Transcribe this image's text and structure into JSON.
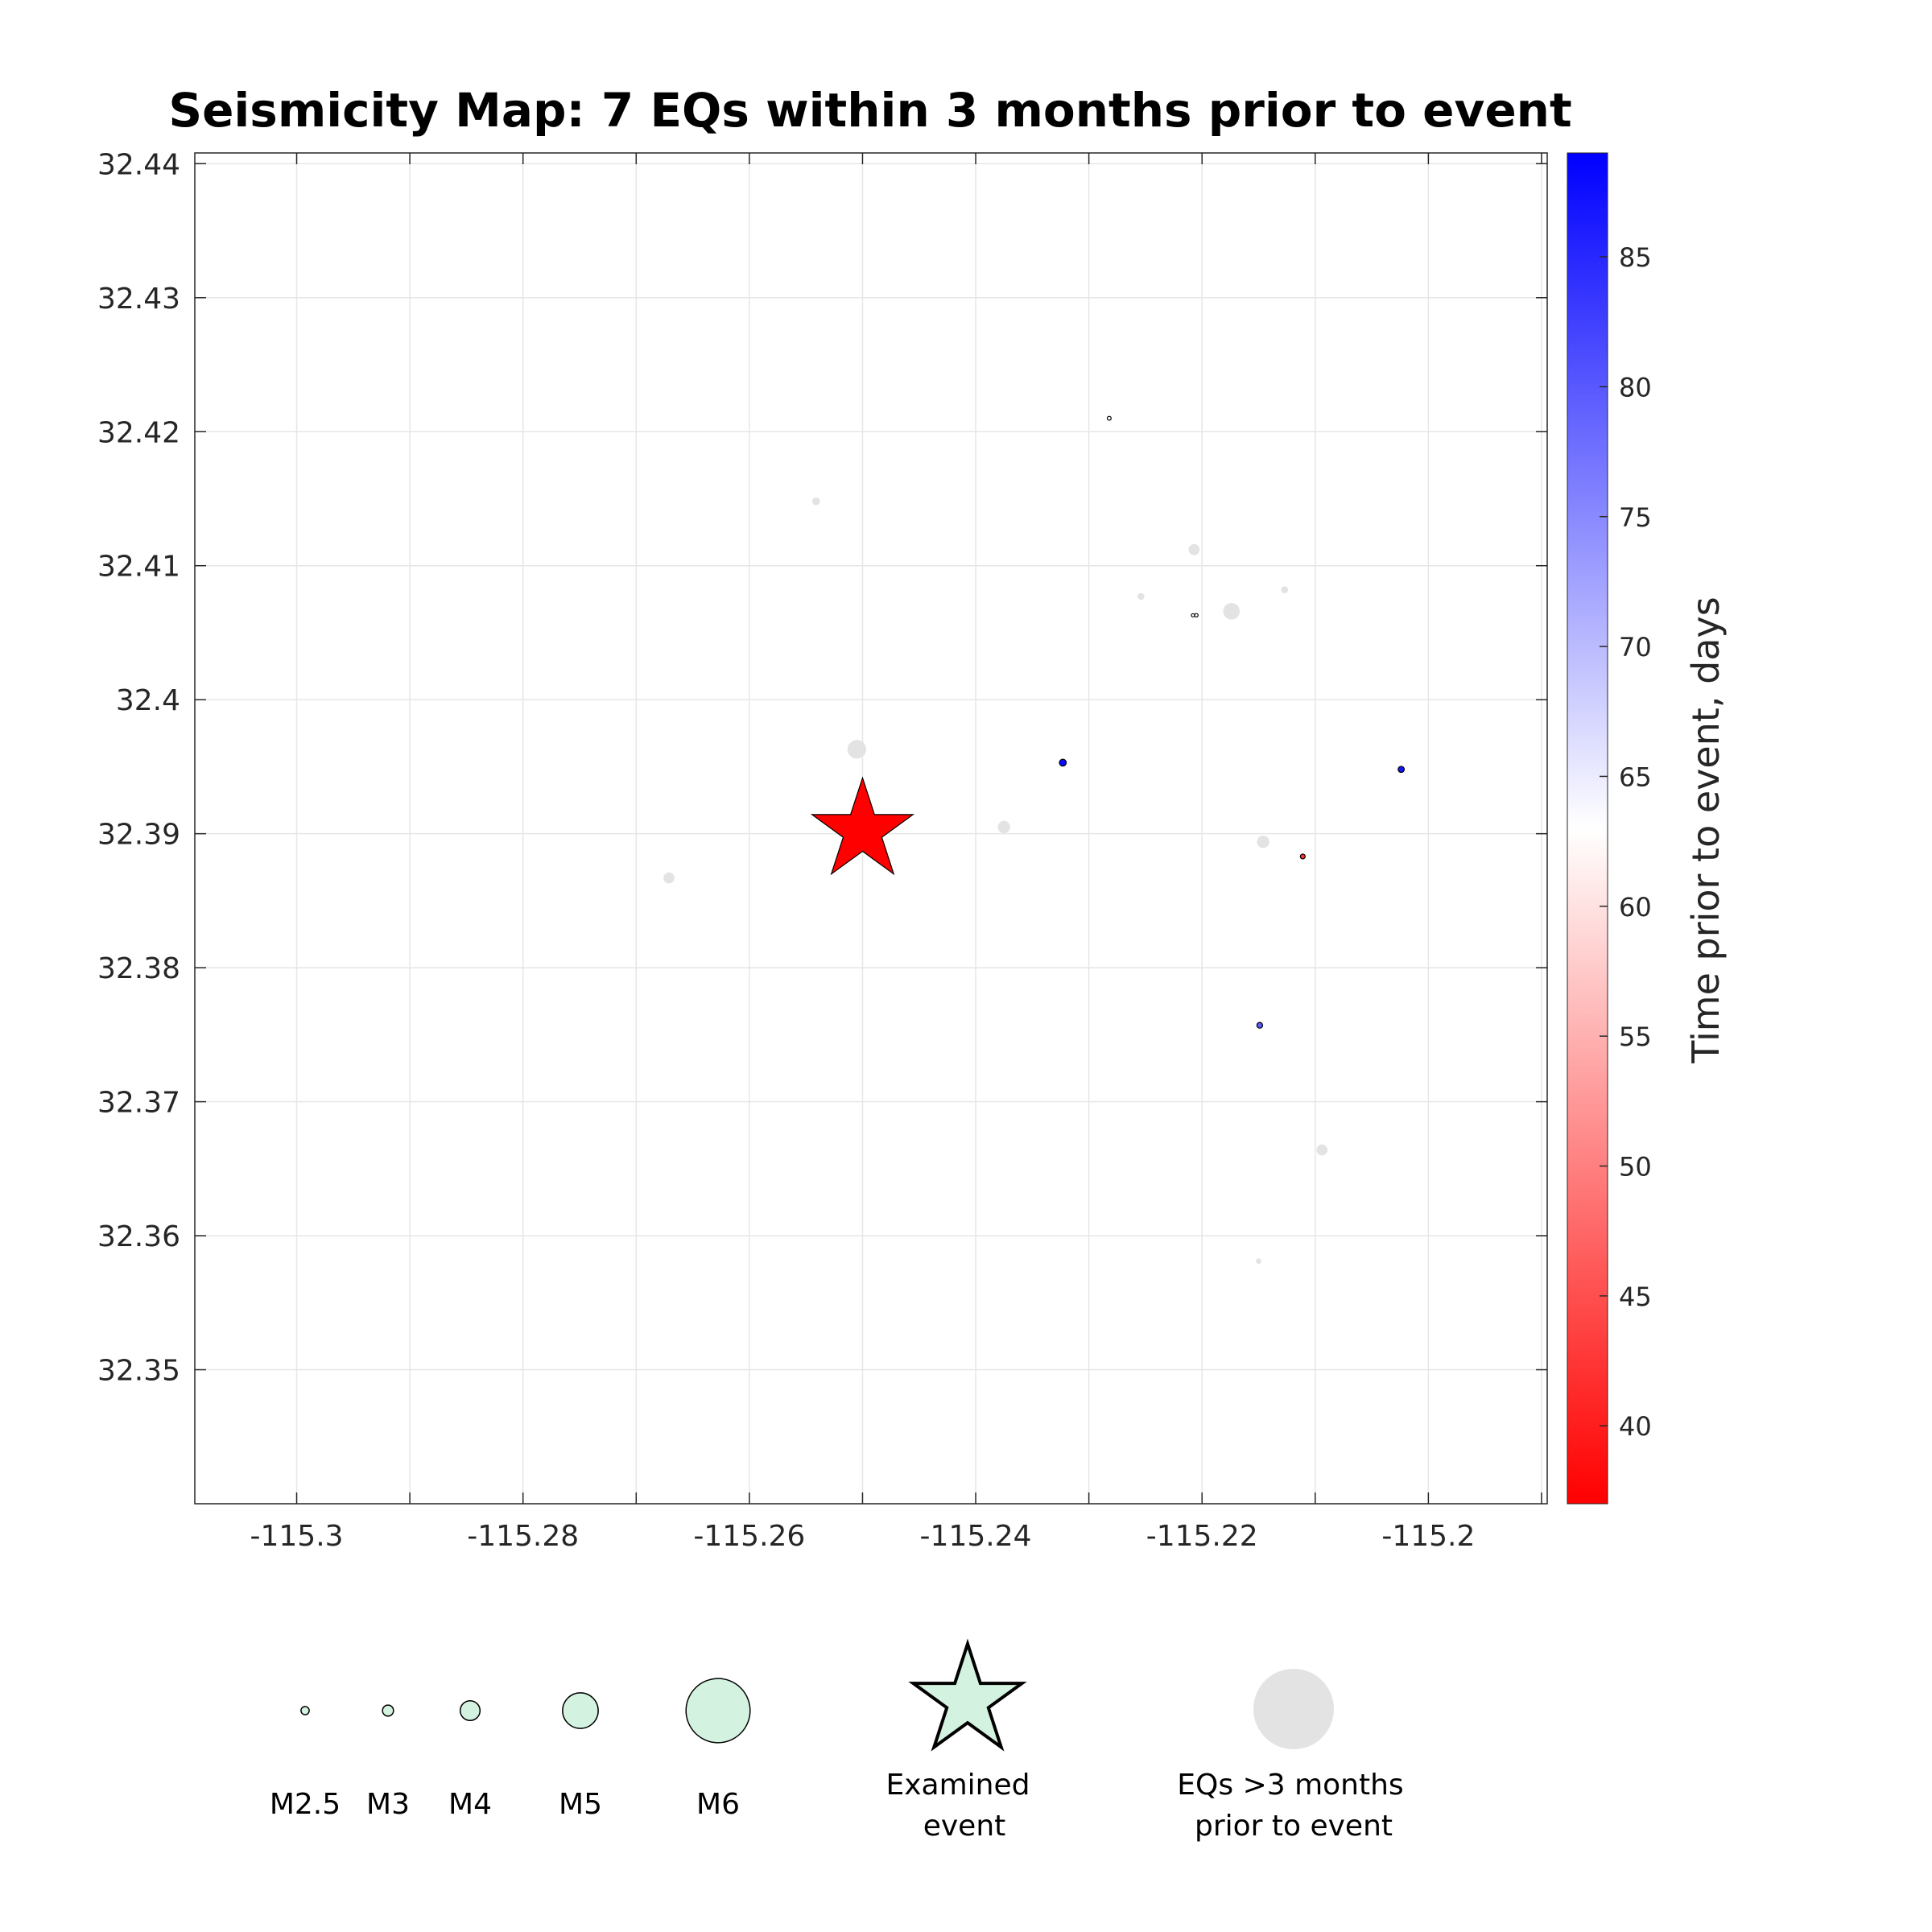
{
  "chart_data": {
    "type": "scatter",
    "title": "Seismicity Map: 7 EQs within 3 months prior to event",
    "xlim": [
      -115.309,
      -115.1895
    ],
    "ylim": [
      32.34,
      32.4408
    ],
    "x_ticks": [
      -115.3,
      -115.28,
      -115.26,
      -115.24,
      -115.22,
      -115.2
    ],
    "x_tick_labels": [
      "-115.3",
      "-115.28",
      "-115.26",
      "-115.24",
      "-115.22",
      "-115.2"
    ],
    "y_ticks": [
      32.35,
      32.36,
      32.37,
      32.38,
      32.39,
      32.4,
      32.41,
      32.42,
      32.43,
      32.44
    ],
    "y_tick_labels": [
      "32.35",
      "32.36",
      "32.37",
      "32.38",
      "32.39",
      "32.4",
      "32.41",
      "32.42",
      "32.43",
      "32.44"
    ],
    "grid": true,
    "colorbar": {
      "label": "Time prior to event, days",
      "range": [
        37,
        89
      ],
      "ticks": [
        40,
        45,
        50,
        55,
        60,
        65,
        70,
        75,
        80,
        85
      ],
      "tick_labels": [
        "40",
        "45",
        "50",
        "55",
        "60",
        "65",
        "70",
        "75",
        "80",
        "85"
      ],
      "colormap": [
        "#ff0000",
        "#ffffff",
        "#0000ff"
      ]
    },
    "examined_event": {
      "lon": -115.25,
      "lat": 32.3902,
      "color": "#ff0000"
    },
    "recent_eqs": [
      {
        "lon": -115.2323,
        "lat": 32.3953,
        "mag": 2.2,
        "days": 88
      },
      {
        "lon": -115.2024,
        "lat": 32.3948,
        "mag": 2.0,
        "days": 87
      },
      {
        "lon": -115.2149,
        "lat": 32.3757,
        "mag": 1.9,
        "days": 80
      },
      {
        "lon": -115.2111,
        "lat": 32.3883,
        "mag": 1.6,
        "days": 42
      },
      {
        "lon": -115.2282,
        "lat": 32.421,
        "mag": 1.2,
        "days": 63
      },
      {
        "lon": -115.2205,
        "lat": 32.4063,
        "mag": 1.0,
        "days": 63
      },
      {
        "lon": -115.2208,
        "lat": 32.4063,
        "mag": 0.9,
        "days": 63
      }
    ],
    "older_eqs": [
      {
        "lon": -115.2505,
        "lat": 32.3963,
        "mag": 3.9
      },
      {
        "lon": -115.2174,
        "lat": 32.4066,
        "mag": 3.7
      },
      {
        "lon": -115.2375,
        "lat": 32.3905,
        "mag": 3.2
      },
      {
        "lon": -115.2146,
        "lat": 32.3894,
        "mag": 3.2
      },
      {
        "lon": -115.2207,
        "lat": 32.4112,
        "mag": 3.0
      },
      {
        "lon": -115.2671,
        "lat": 32.3867,
        "mag": 3.0
      },
      {
        "lon": -115.2094,
        "lat": 32.3664,
        "mag": 3.0
      },
      {
        "lon": -115.2541,
        "lat": 32.4148,
        "mag": 2.4
      },
      {
        "lon": -115.2127,
        "lat": 32.4082,
        "mag": 2.2
      },
      {
        "lon": -115.2254,
        "lat": 32.4077,
        "mag": 2.2
      },
      {
        "lon": -115.215,
        "lat": 32.3581,
        "mag": 1.8
      }
    ],
    "older_color": "#e3e3e3",
    "legend": {
      "magnitude_fill": "#d4f2e0",
      "magnitudes": [
        {
          "label": "M2.5",
          "mag": 2.5
        },
        {
          "label": "M3",
          "mag": 3
        },
        {
          "label": "M4",
          "mag": 4
        },
        {
          "label": "M5",
          "mag": 5
        },
        {
          "label": "M6",
          "mag": 6
        }
      ],
      "examined_label_line1": "Examined",
      "examined_label_line2": "event",
      "older_label_line1": "EQs >3 months",
      "older_label_line2": "prior to event"
    }
  }
}
